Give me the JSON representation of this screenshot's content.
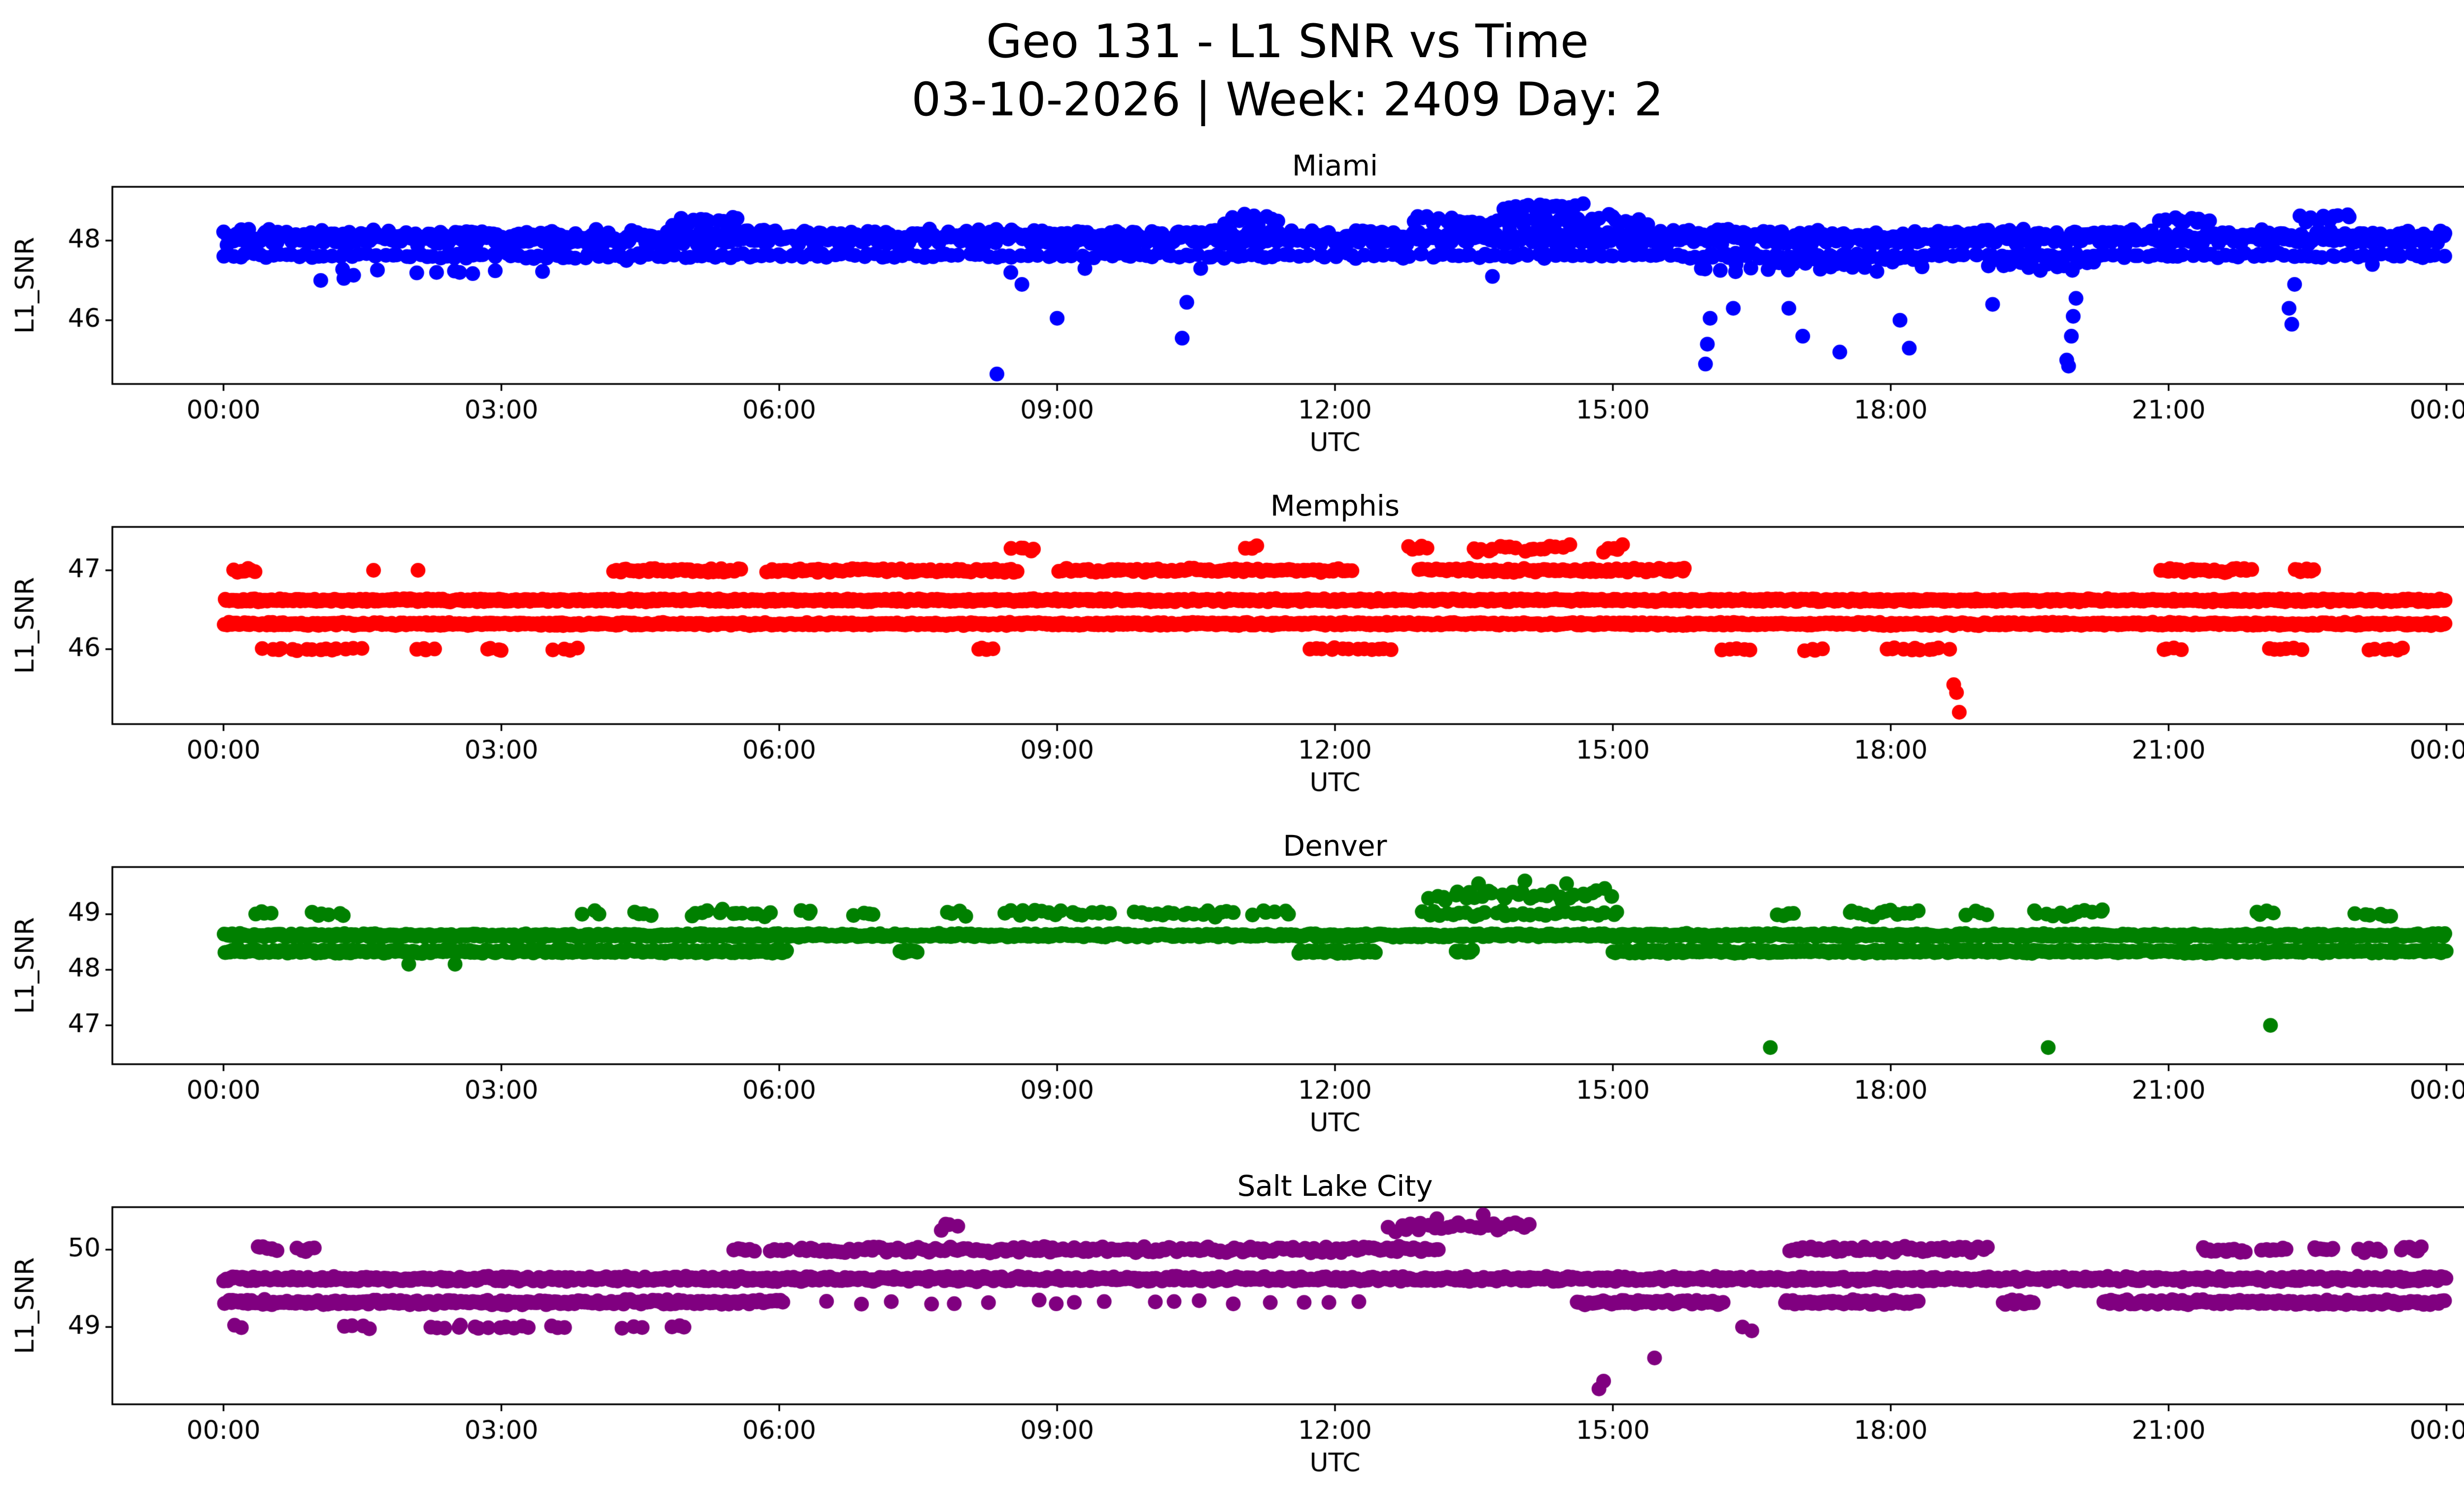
{
  "figure": {
    "title_line1": "Geo 131 - L1 SNR vs Time",
    "title_line2": "03-10-2026 | Week: 2409 Day: 2",
    "background": "#ffffff",
    "text_color": "#000000"
  },
  "chart_data": [
    {
      "type": "scatter",
      "title": "Miami",
      "color": "#0000ff",
      "xlabel": "UTC",
      "ylabel": "L1_SNR",
      "xlim": [
        -1.2,
        25.2
      ],
      "ylim": [
        44.4,
        49.35
      ],
      "x_tick_hours": [
        0,
        3,
        6,
        9,
        12,
        15,
        18,
        21,
        24
      ],
      "x_tick_labels": [
        "00:00",
        "03:00",
        "06:00",
        "09:00",
        "12:00",
        "15:00",
        "18:00",
        "21:00",
        "00:00"
      ],
      "y_ticks": [
        46,
        48
      ],
      "grid": false,
      "bands": [
        {
          "y": 48.08,
          "jitter": 0.15,
          "per_hour": 50,
          "segments": [
            [
              0,
              24
            ]
          ]
        },
        {
          "y": 47.62,
          "jitter": 0.05,
          "per_hour": 14,
          "segments": [
            [
              0,
              24
            ]
          ]
        },
        {
          "y": 48.5,
          "jitter": 0.12,
          "per_hour": 16,
          "segments": [
            [
              4.8,
              5.6
            ],
            [
              10.8,
              11.4
            ],
            [
              12.8,
              15.4
            ],
            [
              20.9,
              21.5
            ],
            [
              22.4,
              23.0
            ]
          ]
        },
        {
          "y": 48.85,
          "jitter": 0.09,
          "per_hour": 18,
          "segments": [
            [
              13.8,
              14.7
            ]
          ]
        },
        {
          "y": 47.45,
          "jitter": 0.22,
          "per_hour": 14,
          "segments": [
            [
              15.9,
              18.4
            ],
            [
              19.0,
              20.2
            ]
          ]
        },
        {
          "y": 47.15,
          "jitter": 0.12,
          "per_hour": 3,
          "segments": [
            [
              1.0,
              3.5
            ]
          ]
        }
      ],
      "outliers": [
        [
          1.05,
          47.0
        ],
        [
          1.3,
          47.05
        ],
        [
          2.3,
          47.2
        ],
        [
          2.55,
          47.2
        ],
        [
          3.35,
          47.55
        ],
        [
          4.35,
          47.5
        ],
        [
          8.35,
          44.65
        ],
        [
          8.5,
          47.2
        ],
        [
          8.62,
          46.9
        ],
        [
          9.0,
          46.05
        ],
        [
          9.3,
          47.3
        ],
        [
          10.35,
          45.55
        ],
        [
          10.4,
          46.45
        ],
        [
          10.55,
          47.3
        ],
        [
          13.7,
          47.1
        ],
        [
          16.0,
          44.9
        ],
        [
          16.02,
          45.4
        ],
        [
          16.05,
          46.05
        ],
        [
          16.3,
          46.3
        ],
        [
          16.9,
          46.3
        ],
        [
          17.05,
          45.6
        ],
        [
          17.45,
          45.2
        ],
        [
          18.1,
          46.0
        ],
        [
          18.2,
          45.3
        ],
        [
          19.1,
          46.4
        ],
        [
          19.9,
          45.0
        ],
        [
          19.92,
          44.85
        ],
        [
          19.95,
          45.6
        ],
        [
          19.97,
          46.1
        ],
        [
          20.0,
          46.55
        ],
        [
          22.3,
          46.3
        ],
        [
          22.33,
          45.9
        ],
        [
          22.36,
          46.9
        ],
        [
          23.2,
          47.4
        ]
      ]
    },
    {
      "type": "scatter",
      "title": "Memphis",
      "color": "#ff0000",
      "xlabel": "UTC",
      "ylabel": "L1_SNR",
      "xlim": [
        -1.2,
        25.2
      ],
      "ylim": [
        45.05,
        47.55
      ],
      "x_tick_hours": [
        0,
        3,
        6,
        9,
        12,
        15,
        18,
        21,
        24
      ],
      "x_tick_labels": [
        "00:00",
        "03:00",
        "06:00",
        "09:00",
        "12:00",
        "15:00",
        "18:00",
        "21:00",
        "00:00"
      ],
      "y_ticks": [
        46,
        47
      ],
      "grid": false,
      "bands": [
        {
          "y": 46.62,
          "jitter": 0.015,
          "per_hour": 50,
          "segments": [
            [
              0,
              24
            ]
          ]
        },
        {
          "y": 46.32,
          "jitter": 0.015,
          "per_hour": 50,
          "segments": [
            [
              0,
              24
            ]
          ]
        },
        {
          "y": 47.0,
          "jitter": 0.02,
          "per_hour": 28,
          "segments": [
            [
              0.1,
              0.35
            ],
            [
              4.2,
              5.6
            ],
            [
              5.85,
              8.6
            ],
            [
              9.0,
              12.2
            ],
            [
              12.9,
              15.8
            ],
            [
              20.9,
              21.9
            ],
            [
              22.35,
              22.6
            ]
          ]
        },
        {
          "y": 47.28,
          "jitter": 0.04,
          "per_hour": 16,
          "segments": [
            [
              8.5,
              8.8
            ],
            [
              11.0,
              11.2
            ],
            [
              12.75,
              13.05
            ],
            [
              13.45,
              14.55
            ],
            [
              14.85,
              15.15
            ]
          ]
        },
        {
          "y": 46.0,
          "jitter": 0.015,
          "per_hour": 14,
          "segments": [
            [
              0.4,
              1.5
            ],
            [
              2.05,
              2.3
            ],
            [
              2.8,
              3.05
            ],
            [
              3.55,
              3.85
            ],
            [
              8.1,
              8.35
            ],
            [
              11.7,
              12.65
            ],
            [
              16.15,
              16.5
            ],
            [
              17.05,
              17.3
            ],
            [
              17.9,
              18.65
            ],
            [
              20.9,
              21.15
            ],
            [
              22.05,
              22.45
            ],
            [
              23.15,
              23.55
            ]
          ]
        }
      ],
      "outliers": [
        [
          1.62,
          47.0
        ],
        [
          2.1,
          47.0
        ],
        [
          18.68,
          45.55
        ],
        [
          18.71,
          45.45
        ],
        [
          18.74,
          45.2
        ]
      ]
    },
    {
      "type": "scatter",
      "title": "Denver",
      "color": "#008000",
      "xlabel": "UTC",
      "ylabel": "L1_SNR",
      "xlim": [
        -1.2,
        25.2
      ],
      "ylim": [
        46.3,
        49.85
      ],
      "x_tick_hours": [
        0,
        3,
        6,
        9,
        12,
        15,
        18,
        21,
        24
      ],
      "x_tick_labels": [
        "00:00",
        "03:00",
        "06:00",
        "09:00",
        "12:00",
        "15:00",
        "18:00",
        "21:00",
        "00:00"
      ],
      "y_ticks": [
        47,
        48,
        49
      ],
      "grid": false,
      "bands": [
        {
          "y": 48.62,
          "jitter": 0.025,
          "per_hour": 50,
          "segments": [
            [
              0,
              24
            ]
          ]
        },
        {
          "y": 48.33,
          "jitter": 0.025,
          "per_hour": 45,
          "segments": [
            [
              0,
              6.1
            ],
            [
              7.3,
              7.5
            ],
            [
              11.6,
              12.45
            ],
            [
              13.3,
              13.5
            ],
            [
              15.0,
              24
            ]
          ]
        },
        {
          "y": 49.02,
          "jitter": 0.05,
          "per_hour": 14,
          "segments": [
            [
              0.3,
              0.55
            ],
            [
              0.9,
              1.35
            ],
            [
              3.85,
              4.1
            ],
            [
              4.4,
              4.65
            ],
            [
              5.0,
              5.95
            ],
            [
              6.2,
              6.4
            ],
            [
              6.8,
              7.05
            ],
            [
              7.8,
              8.05
            ],
            [
              8.4,
              9.6
            ],
            [
              9.8,
              10.95
            ],
            [
              11.1,
              11.55
            ],
            [
              12.9,
              15.1
            ],
            [
              16.75,
              17.0
            ],
            [
              17.5,
              18.35
            ],
            [
              18.8,
              19.05
            ],
            [
              19.5,
              20.35
            ],
            [
              21.9,
              22.15
            ],
            [
              23.0,
              23.45
            ]
          ]
        },
        {
          "y": 49.35,
          "jitter": 0.08,
          "per_hour": 16,
          "segments": [
            [
              13.0,
              15.0
            ]
          ]
        }
      ],
      "outliers": [
        [
          2.0,
          48.1
        ],
        [
          2.5,
          48.1
        ],
        [
          13.55,
          49.55
        ],
        [
          14.05,
          49.6
        ],
        [
          14.5,
          49.55
        ],
        [
          16.7,
          46.6
        ],
        [
          19.7,
          46.6
        ],
        [
          22.1,
          47.0
        ]
      ]
    },
    {
      "type": "scatter",
      "title": "Salt Lake City",
      "color": "#800080",
      "xlabel": "UTC",
      "ylabel": "L1_SNR",
      "xlim": [
        -1.2,
        25.2
      ],
      "ylim": [
        48.0,
        50.55
      ],
      "x_tick_hours": [
        0,
        3,
        6,
        9,
        12,
        15,
        18,
        21,
        24
      ],
      "x_tick_labels": [
        "00:00",
        "03:00",
        "06:00",
        "09:00",
        "12:00",
        "15:00",
        "18:00",
        "21:00",
        "00:00"
      ],
      "y_ticks": [
        49,
        50
      ],
      "grid": false,
      "bands": [
        {
          "y": 49.62,
          "jitter": 0.025,
          "per_hour": 50,
          "segments": [
            [
              0,
              24
            ]
          ]
        },
        {
          "y": 49.32,
          "jitter": 0.025,
          "per_hour": 42,
          "segments": [
            [
              0,
              6.05
            ],
            [
              14.6,
              16.2
            ],
            [
              16.85,
              18.3
            ],
            [
              19.2,
              19.55
            ],
            [
              20.3,
              24
            ]
          ]
        },
        {
          "y": 50.0,
          "jitter": 0.03,
          "per_hour": 28,
          "segments": [
            [
              0.35,
              0.6
            ],
            [
              0.78,
              1.0
            ],
            [
              5.5,
              5.75
            ],
            [
              5.9,
              6.1
            ],
            [
              6.2,
              13.15
            ],
            [
              16.9,
              19.05
            ],
            [
              21.35,
              21.85
            ],
            [
              22.0,
              22.3
            ],
            [
              22.55,
              22.8
            ],
            [
              23.05,
              23.3
            ],
            [
              23.5,
              23.75
            ]
          ]
        },
        {
          "y": 50.3,
          "jitter": 0.05,
          "per_hour": 16,
          "segments": [
            [
              7.7,
              7.95
            ],
            [
              12.55,
              14.15
            ]
          ]
        },
        {
          "y": 49.0,
          "jitter": 0.02,
          "per_hour": 11,
          "segments": [
            [
              0.05,
              0.2
            ],
            [
              1.3,
              1.65
            ],
            [
              2.2,
              3.35
            ],
            [
              3.5,
              3.75
            ],
            [
              4.3,
              4.55
            ],
            [
              4.8,
              5.05
            ]
          ]
        },
        {
          "y": 49.32,
          "jitter": 0.02,
          "per_hour": 3,
          "segments": [
            [
              6.5,
              12.5
            ]
          ]
        }
      ],
      "outliers": [
        [
          13.1,
          50.4
        ],
        [
          13.6,
          50.45
        ],
        [
          14.85,
          48.2
        ],
        [
          14.9,
          48.3
        ],
        [
          15.45,
          48.6
        ],
        [
          16.4,
          49.0
        ],
        [
          16.5,
          48.95
        ]
      ]
    }
  ]
}
